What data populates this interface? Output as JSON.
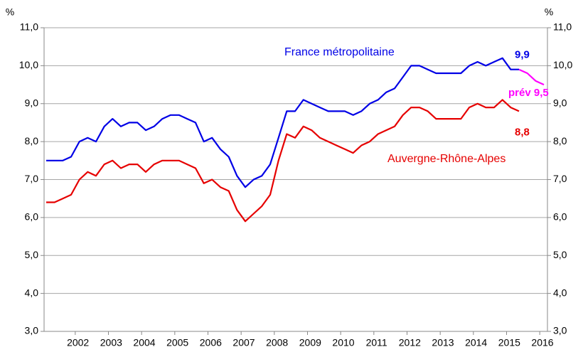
{
  "chart_data": {
    "type": "line",
    "ylabel": "%",
    "y2label": "%",
    "categories": [
      null,
      null,
      null,
      null,
      "2002",
      null,
      null,
      null,
      "2003",
      null,
      null,
      null,
      "2004",
      null,
      null,
      null,
      "2005",
      null,
      null,
      null,
      "2006",
      null,
      null,
      null,
      "2007",
      null,
      null,
      null,
      "2008",
      null,
      null,
      null,
      "2009",
      null,
      null,
      null,
      "2010",
      null,
      null,
      null,
      "2011",
      null,
      null,
      null,
      "2012",
      null,
      null,
      null,
      "2013",
      null,
      null,
      null,
      "2014",
      null,
      null,
      null,
      "2015",
      null,
      null,
      null,
      "2016"
    ],
    "series": [
      {
        "name": "France métropolitaine",
        "color": "#0000e6",
        "values": [
          7.5,
          7.5,
          7.5,
          7.6,
          8.0,
          8.1,
          8.0,
          8.4,
          8.6,
          8.4,
          8.5,
          8.5,
          8.3,
          8.4,
          8.6,
          8.7,
          8.7,
          8.6,
          8.5,
          8.0,
          8.1,
          7.8,
          7.6,
          7.1,
          6.8,
          7.0,
          7.1,
          7.4,
          8.1,
          8.8,
          8.8,
          9.1,
          9.0,
          8.9,
          8.8,
          8.8,
          8.8,
          8.7,
          8.8,
          9.0,
          9.1,
          9.3,
          9.4,
          9.7,
          10.0,
          10.0,
          9.9,
          9.8,
          9.8,
          9.8,
          9.8,
          10.0,
          10.1,
          10.0,
          10.1,
          10.2,
          9.9,
          9.9,
          null,
          null,
          null
        ],
        "value_labels": [
          null,
          null,
          null,
          null,
          null,
          null,
          null,
          null,
          null,
          null,
          null,
          null,
          null,
          null,
          null,
          null,
          null,
          null,
          null,
          null,
          null,
          null,
          null,
          null,
          null,
          null,
          null,
          null,
          null,
          null,
          null,
          null,
          null,
          null,
          null,
          null,
          null,
          null,
          null,
          null,
          null,
          null,
          null,
          null,
          null,
          null,
          null,
          null,
          null,
          null,
          null,
          null,
          null,
          null,
          null,
          null,
          null,
          "9,9",
          null,
          null,
          null
        ]
      },
      {
        "name": "Auvergne-Rhône-Alpes",
        "color": "#e60000",
        "values": [
          6.4,
          6.4,
          6.5,
          6.6,
          7.0,
          7.2,
          7.1,
          7.4,
          7.5,
          7.3,
          7.4,
          7.4,
          7.2,
          7.4,
          7.5,
          7.5,
          7.5,
          7.4,
          7.3,
          6.9,
          7.0,
          6.8,
          6.7,
          6.2,
          5.9,
          6.1,
          6.3,
          6.6,
          7.5,
          8.2,
          8.1,
          8.4,
          8.3,
          8.1,
          8.0,
          7.9,
          7.8,
          7.7,
          7.9,
          8.0,
          8.2,
          8.3,
          8.4,
          8.7,
          8.9,
          8.9,
          8.8,
          8.6,
          8.6,
          8.6,
          8.6,
          8.9,
          9.0,
          8.9,
          8.9,
          9.1,
          8.9,
          8.8,
          null,
          null,
          null
        ],
        "value_labels": [
          null,
          null,
          null,
          null,
          null,
          null,
          null,
          null,
          null,
          null,
          null,
          null,
          null,
          null,
          null,
          null,
          null,
          null,
          null,
          null,
          null,
          null,
          null,
          null,
          null,
          null,
          null,
          null,
          null,
          null,
          null,
          null,
          null,
          null,
          null,
          null,
          null,
          null,
          null,
          null,
          null,
          null,
          null,
          null,
          null,
          null,
          null,
          null,
          null,
          null,
          null,
          null,
          null,
          null,
          null,
          null,
          null,
          "8,8",
          null,
          null,
          null
        ]
      },
      {
        "color": "#ff00ff",
        "values": [
          null,
          null,
          null,
          null,
          null,
          null,
          null,
          null,
          null,
          null,
          null,
          null,
          null,
          null,
          null,
          null,
          null,
          null,
          null,
          null,
          null,
          null,
          null,
          null,
          null,
          null,
          null,
          null,
          null,
          null,
          null,
          null,
          null,
          null,
          null,
          null,
          null,
          null,
          null,
          null,
          null,
          null,
          null,
          null,
          null,
          null,
          null,
          null,
          null,
          null,
          null,
          null,
          null,
          null,
          null,
          null,
          null,
          9.9,
          9.8,
          9.6,
          9.5
        ],
        "value_labels": [
          null,
          null,
          null,
          null,
          null,
          null,
          null,
          null,
          null,
          null,
          null,
          null,
          null,
          null,
          null,
          null,
          null,
          null,
          null,
          null,
          null,
          null,
          null,
          null,
          null,
          null,
          null,
          null,
          null,
          null,
          null,
          null,
          null,
          null,
          null,
          null,
          null,
          null,
          null,
          null,
          null,
          null,
          null,
          null,
          null,
          null,
          null,
          null,
          null,
          null,
          null,
          null,
          null,
          null,
          null,
          null,
          null,
          null,
          null,
          null,
          "prév 9,5"
        ]
      }
    ],
    "ylim": [
      3,
      11
    ],
    "yticks": [
      {
        "value": 3,
        "label": "3,0"
      },
      {
        "value": 4,
        "label": "4,0"
      },
      {
        "value": 5,
        "label": "5,0"
      },
      {
        "value": 6,
        "label": "6,0"
      },
      {
        "value": 7,
        "label": "7,0"
      },
      {
        "value": 8,
        "label": "8,0"
      },
      {
        "value": 9,
        "label": "9,0"
      },
      {
        "value": 10,
        "label": "10,0"
      },
      {
        "value": 11,
        "label": "11,0"
      }
    ],
    "y2lim": [
      3,
      11
    ],
    "y2ticks": [
      {
        "value": 3,
        "label": "3,0"
      },
      {
        "value": 4,
        "label": "4,0"
      },
      {
        "value": 5,
        "label": "5,0"
      },
      {
        "value": 6,
        "label": "6,0"
      },
      {
        "value": 7,
        "label": "7,0"
      },
      {
        "value": 8,
        "label": "8,0"
      },
      {
        "value": 9,
        "label": "9,0"
      },
      {
        "value": 10,
        "label": "10,0"
      },
      {
        "value": 11,
        "label": "11,0"
      }
    ],
    "grid": true
  }
}
